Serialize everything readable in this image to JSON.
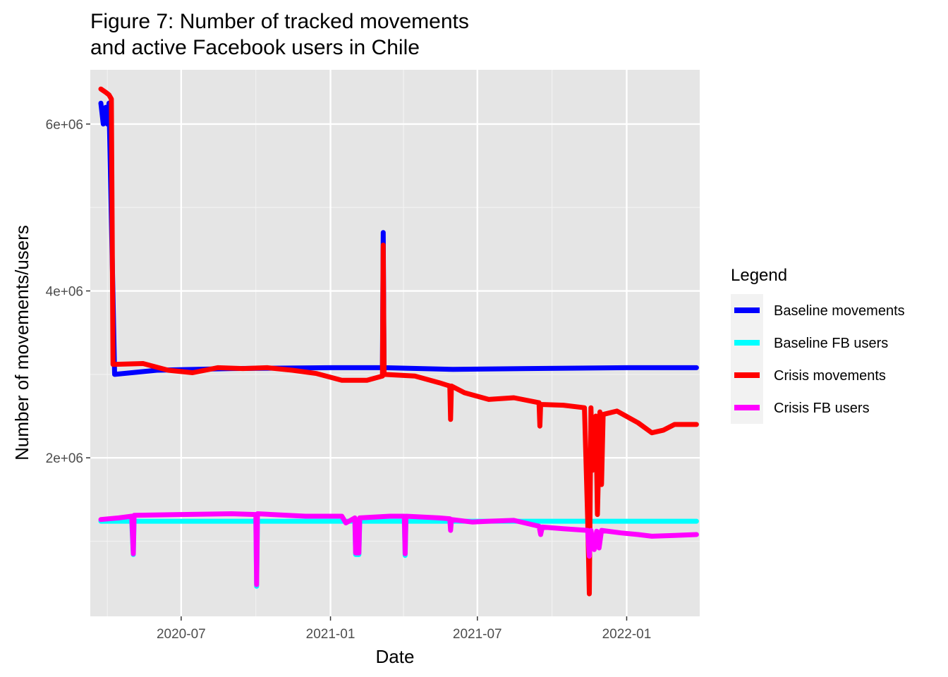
{
  "chart_data": {
    "type": "line",
    "title": [
      "Figure 7: Number of tracked movements",
      "and active Facebook users in Chile"
    ],
    "xlabel": "Date",
    "ylabel": "Number of movements/users",
    "xlim": [
      "2020-03-11",
      "2022-04-01"
    ],
    "ylim": [
      100000,
      6650000
    ],
    "x_ticks": [
      {
        "date": "2020-07-01",
        "label": "2020-07"
      },
      {
        "date": "2021-01-01",
        "label": "2021-01"
      },
      {
        "date": "2021-07-01",
        "label": "2021-07"
      },
      {
        "date": "2022-01-01",
        "label": "2022-01"
      }
    ],
    "x_minor_ticks": [
      "2020-04-01",
      "2020-10-01",
      "2021-04-01",
      "2021-10-01"
    ],
    "y_ticks": [
      {
        "value": 2000000,
        "label": "2e+06"
      },
      {
        "value": 4000000,
        "label": "4e+06"
      },
      {
        "value": 6000000,
        "label": "6e+06"
      }
    ],
    "y_minor_ticks": [
      1000000,
      3000000,
      5000000
    ],
    "grid": true,
    "background": "#E5E5E5",
    "legend": {
      "title": "Legend",
      "position": "right"
    },
    "series": [
      {
        "name": "Baseline movements",
        "color": "#0000FF",
        "points": [
          [
            "2020-03-24",
            6250000
          ],
          [
            "2020-03-27",
            6000000
          ],
          [
            "2020-03-30",
            6200000
          ],
          [
            "2020-04-01",
            6000000
          ],
          [
            "2020-04-03",
            6250000
          ],
          [
            "2020-04-10",
            3000000
          ],
          [
            "2020-06-01",
            3050000
          ],
          [
            "2020-09-01",
            3070000
          ],
          [
            "2021-01-01",
            3080000
          ],
          [
            "2021-03-06",
            3080000
          ],
          [
            "2021-03-07",
            4700000
          ],
          [
            "2021-03-08",
            3080000
          ],
          [
            "2021-06-01",
            3060000
          ],
          [
            "2021-09-01",
            3070000
          ],
          [
            "2022-01-01",
            3080000
          ],
          [
            "2022-03-28",
            3080000
          ]
        ]
      },
      {
        "name": "Baseline FB users",
        "color": "#00FFFF",
        "points": [
          [
            "2020-03-24",
            1240000
          ],
          [
            "2020-05-01",
            1240000
          ],
          [
            "2020-05-03",
            840000
          ],
          [
            "2020-05-04",
            1240000
          ],
          [
            "2020-10-01",
            1240000
          ],
          [
            "2020-10-02",
            460000
          ],
          [
            "2020-10-03",
            1240000
          ],
          [
            "2021-01-31",
            1240000
          ],
          [
            "2021-02-01",
            840000
          ],
          [
            "2021-02-05",
            840000
          ],
          [
            "2021-02-06",
            1240000
          ],
          [
            "2021-04-02",
            1240000
          ],
          [
            "2021-04-03",
            830000
          ],
          [
            "2021-04-04",
            1240000
          ],
          [
            "2022-03-28",
            1240000
          ]
        ]
      },
      {
        "name": "Crisis movements",
        "color": "#FF0000",
        "points": [
          [
            "2020-03-24",
            6420000
          ],
          [
            "2020-03-30",
            6380000
          ],
          [
            "2020-04-03",
            6350000
          ],
          [
            "2020-04-06",
            6300000
          ],
          [
            "2020-04-08",
            3120000
          ],
          [
            "2020-05-15",
            3130000
          ],
          [
            "2020-06-15",
            3050000
          ],
          [
            "2020-07-15",
            3020000
          ],
          [
            "2020-08-15",
            3080000
          ],
          [
            "2020-09-15",
            3070000
          ],
          [
            "2020-10-15",
            3080000
          ],
          [
            "2020-11-15",
            3050000
          ],
          [
            "2020-12-15",
            3010000
          ],
          [
            "2021-01-15",
            2930000
          ],
          [
            "2021-02-15",
            2930000
          ],
          [
            "2021-03-06",
            2980000
          ],
          [
            "2021-03-07",
            4550000
          ],
          [
            "2021-03-08",
            3000000
          ],
          [
            "2021-04-15",
            2980000
          ],
          [
            "2021-05-15",
            2900000
          ],
          [
            "2021-05-28",
            2860000
          ],
          [
            "2021-05-29",
            2460000
          ],
          [
            "2021-05-30",
            2860000
          ],
          [
            "2021-06-15",
            2780000
          ],
          [
            "2021-07-15",
            2700000
          ],
          [
            "2021-08-15",
            2720000
          ],
          [
            "2021-09-15",
            2660000
          ],
          [
            "2021-09-16",
            2380000
          ],
          [
            "2021-09-17",
            2640000
          ],
          [
            "2021-10-15",
            2630000
          ],
          [
            "2021-11-10",
            2600000
          ],
          [
            "2021-11-14",
            1250000
          ],
          [
            "2021-11-16",
            370000
          ],
          [
            "2021-11-18",
            2600000
          ],
          [
            "2021-11-20",
            1850000
          ],
          [
            "2021-11-24",
            2500000
          ],
          [
            "2021-11-26",
            1320000
          ],
          [
            "2021-11-29",
            2550000
          ],
          [
            "2021-12-01",
            1680000
          ],
          [
            "2021-12-03",
            2520000
          ],
          [
            "2021-12-20",
            2560000
          ],
          [
            "2022-01-15",
            2420000
          ],
          [
            "2022-02-01",
            2300000
          ],
          [
            "2022-02-15",
            2330000
          ],
          [
            "2022-03-01",
            2400000
          ],
          [
            "2022-03-28",
            2400000
          ]
        ]
      },
      {
        "name": "Crisis FB users",
        "color": "#FF00FF",
        "points": [
          [
            "2020-03-24",
            1260000
          ],
          [
            "2020-04-15",
            1280000
          ],
          [
            "2020-05-01",
            1300000
          ],
          [
            "2020-05-03",
            850000
          ],
          [
            "2020-05-04",
            1310000
          ],
          [
            "2020-07-01",
            1320000
          ],
          [
            "2020-09-01",
            1330000
          ],
          [
            "2020-10-01",
            1320000
          ],
          [
            "2020-10-02",
            480000
          ],
          [
            "2020-10-03",
            1330000
          ],
          [
            "2020-12-01",
            1300000
          ],
          [
            "2021-01-15",
            1300000
          ],
          [
            "2021-01-20",
            1220000
          ],
          [
            "2021-01-31",
            1280000
          ],
          [
            "2021-02-01",
            860000
          ],
          [
            "2021-02-05",
            860000
          ],
          [
            "2021-02-06",
            1280000
          ],
          [
            "2021-03-15",
            1300000
          ],
          [
            "2021-04-02",
            1300000
          ],
          [
            "2021-04-03",
            850000
          ],
          [
            "2021-04-04",
            1300000
          ],
          [
            "2021-05-15",
            1280000
          ],
          [
            "2021-05-28",
            1270000
          ],
          [
            "2021-05-29",
            1130000
          ],
          [
            "2021-05-30",
            1260000
          ],
          [
            "2021-06-25",
            1230000
          ],
          [
            "2021-07-15",
            1240000
          ],
          [
            "2021-08-15",
            1250000
          ],
          [
            "2021-09-15",
            1180000
          ],
          [
            "2021-09-17",
            1080000
          ],
          [
            "2021-09-19",
            1170000
          ],
          [
            "2021-10-15",
            1150000
          ],
          [
            "2021-11-14",
            1130000
          ],
          [
            "2021-11-16",
            820000
          ],
          [
            "2021-11-18",
            1130000
          ],
          [
            "2021-11-22",
            900000
          ],
          [
            "2021-11-25",
            1120000
          ],
          [
            "2021-11-28",
            920000
          ],
          [
            "2021-12-01",
            1130000
          ],
          [
            "2021-12-25",
            1100000
          ],
          [
            "2022-01-15",
            1080000
          ],
          [
            "2022-02-01",
            1060000
          ],
          [
            "2022-03-01",
            1070000
          ],
          [
            "2022-03-28",
            1080000
          ]
        ]
      }
    ]
  }
}
